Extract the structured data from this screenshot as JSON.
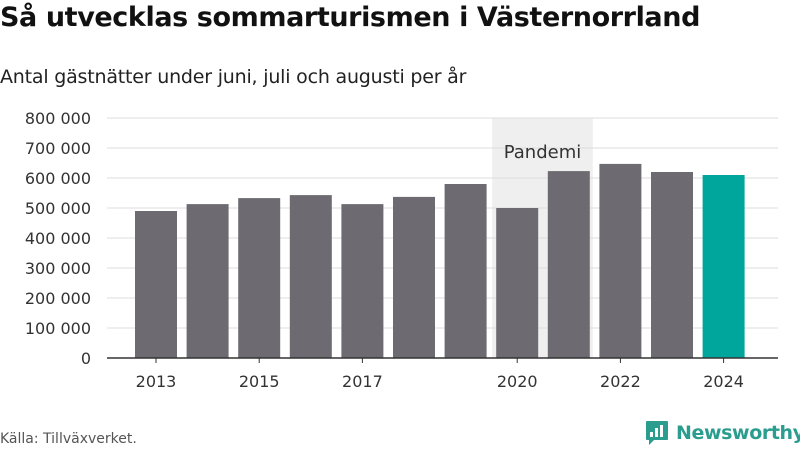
{
  "title": "Så utvecklas sommarturismen i Västernorrland",
  "subtitle": "Antal gästnätter under juni, juli och augusti per år",
  "source": "Källa: Tillväxverket.",
  "brand": "Newsworthy",
  "colors": {
    "bar": "#6d6b71",
    "highlight": "#00a59b",
    "shade": "#efefef",
    "brand": "#2a9d8f"
  },
  "chart_data": {
    "type": "bar",
    "categories": [
      "2013",
      "2014",
      "2015",
      "2016",
      "2017",
      "2018",
      "2019",
      "2020",
      "2021",
      "2022",
      "2023",
      "2024"
    ],
    "values": [
      490000,
      513000,
      533000,
      543000,
      513000,
      537000,
      580000,
      500000,
      623000,
      647000,
      620000,
      610000
    ],
    "highlight_index": 11,
    "x_tick_labels": [
      "2013",
      "2015",
      "2017",
      "2020",
      "2022",
      "2024"
    ],
    "ylim": [
      0,
      800000
    ],
    "y_ticks": [
      0,
      100000,
      200000,
      300000,
      400000,
      500000,
      600000,
      700000,
      800000
    ],
    "y_tick_labels": [
      "0",
      "100 000",
      "200 000",
      "300 000",
      "400 000",
      "500 000",
      "600 000",
      "700 000",
      "800 000"
    ],
    "grid": true,
    "xlabel": "",
    "ylabel": "",
    "annotation": {
      "label": "Pandemi",
      "from": "2020",
      "to": "2021"
    }
  }
}
